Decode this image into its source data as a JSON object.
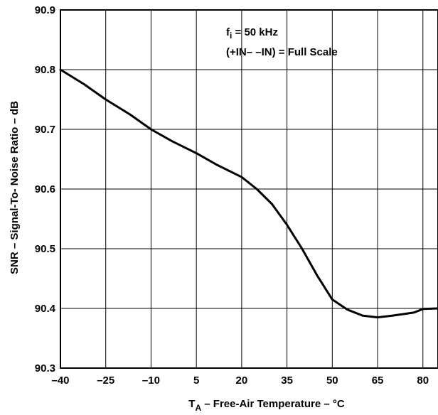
{
  "chart_data": {
    "type": "line",
    "xlabel": {
      "main": "T",
      "sub": "A",
      "rest": " – Free-Air Temperature – °C"
    },
    "ylabel": "SNR – Signal-To- Noise Ratio – dB",
    "xlim": [
      -40,
      85
    ],
    "ylim": [
      90.3,
      90.9
    ],
    "x_ticks": [
      -40,
      -25,
      -10,
      5,
      20,
      35,
      50,
      65,
      80
    ],
    "x_tick_labels": [
      "–40",
      "–25",
      "–10",
      "5",
      "20",
      "35",
      "50",
      "65",
      "80"
    ],
    "y_ticks": [
      90.3,
      90.4,
      90.5,
      90.6,
      90.7,
      90.8,
      90.9
    ],
    "y_tick_labels": [
      "90.3",
      "90.4",
      "90.5",
      "90.6",
      "90.7",
      "90.8",
      "90.9"
    ],
    "grid": true,
    "annotations": [
      {
        "main": "f",
        "sub": "i",
        "rest": " = 50 kHz"
      },
      {
        "main": "(+IN– –IN) = Full Scale",
        "sub": "",
        "rest": ""
      }
    ],
    "series": [
      {
        "x": [
          -40,
          -32,
          -25,
          -17,
          -10,
          -3,
          5,
          12,
          20,
          25,
          30,
          35,
          40,
          45,
          50,
          55,
          60,
          65,
          70,
          77,
          80,
          85
        ],
        "y": [
          90.8,
          90.775,
          90.75,
          90.725,
          90.7,
          90.68,
          90.66,
          90.64,
          90.62,
          90.6,
          90.575,
          90.54,
          90.5,
          90.455,
          90.415,
          90.398,
          90.388,
          90.385,
          90.388,
          90.393,
          90.399,
          90.4
        ]
      }
    ]
  }
}
